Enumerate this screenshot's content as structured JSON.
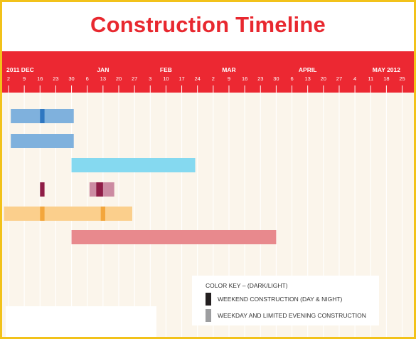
{
  "title": "Construction Timeline",
  "colors": {
    "header": "#ec2832",
    "chart_bg": "#fbf5eb",
    "grid": "#ffffff",
    "text_on_header": "#ffffff"
  },
  "chart_data": {
    "type": "gantt",
    "months": [
      {
        "label": "2011  DEC",
        "date": "2011-12-02"
      },
      {
        "label": "JAN",
        "date": "2012-01-13"
      },
      {
        "label": "FEB",
        "date": "2012-02-10"
      },
      {
        "label": "MAR",
        "date": "2012-03-09"
      },
      {
        "label": "APRIL",
        "date": "2012-04-13"
      },
      {
        "label": "MAY 2012",
        "date": "2012-05-18"
      }
    ],
    "ticks": [
      {
        "label": "2",
        "date": "2011-12-02"
      },
      {
        "label": "9",
        "date": "2011-12-09"
      },
      {
        "label": "16",
        "date": "2011-12-16"
      },
      {
        "label": "23",
        "date": "2011-12-23"
      },
      {
        "label": "30",
        "date": "2011-12-30"
      },
      {
        "label": "6",
        "date": "2012-01-06"
      },
      {
        "label": "13",
        "date": "2012-01-13"
      },
      {
        "label": "20",
        "date": "2012-01-20"
      },
      {
        "label": "27",
        "date": "2012-01-27"
      },
      {
        "label": "3",
        "date": "2012-02-03"
      },
      {
        "label": "10",
        "date": "2012-02-10"
      },
      {
        "label": "17",
        "date": "2012-02-17"
      },
      {
        "label": "24",
        "date": "2012-02-24"
      },
      {
        "label": "2",
        "date": "2012-03-02"
      },
      {
        "label": "9",
        "date": "2012-03-09"
      },
      {
        "label": "16",
        "date": "2012-03-16"
      },
      {
        "label": "23",
        "date": "2012-03-23"
      },
      {
        "label": "30",
        "date": "2012-03-30"
      },
      {
        "label": "6",
        "date": "2012-04-06"
      },
      {
        "label": "13",
        "date": "2012-04-13"
      },
      {
        "label": "20",
        "date": "2012-04-20"
      },
      {
        "label": "27",
        "date": "2012-04-27"
      },
      {
        "label": "4",
        "date": "2012-05-04"
      },
      {
        "label": "11",
        "date": "2012-05-11"
      },
      {
        "label": "18",
        "date": "2012-05-18"
      },
      {
        "label": "25",
        "date": "2012-05-25"
      }
    ],
    "rows": [
      {
        "light": [
          {
            "start": "2011-12-03",
            "end": "2011-12-31",
            "color": "#7fb1dd"
          }
        ],
        "dark": [
          {
            "start": "2011-12-16",
            "end": "2011-12-18",
            "color": "#2f77c1"
          }
        ]
      },
      {
        "light": [
          {
            "start": "2011-12-03",
            "end": "2011-12-31",
            "color": "#7fb1dd"
          }
        ],
        "dark": []
      },
      {
        "light": [
          {
            "start": "2011-12-30",
            "end": "2012-02-23",
            "color": "#85d9f0"
          }
        ],
        "dark": []
      },
      {
        "light": [
          {
            "start": "2012-01-07",
            "end": "2012-01-18",
            "color": "#cc8ba2"
          }
        ],
        "dark": [
          {
            "start": "2011-12-16",
            "end": "2011-12-18",
            "color": "#8f1d46"
          },
          {
            "start": "2012-01-10",
            "end": "2012-01-13",
            "color": "#8f1d46"
          }
        ]
      },
      {
        "light": [
          {
            "start": "2011-11-30",
            "end": "2012-01-26",
            "color": "#fbcf8c"
          }
        ],
        "dark": [
          {
            "start": "2011-12-16",
            "end": "2011-12-18",
            "color": "#f3a63c"
          },
          {
            "start": "2012-01-12",
            "end": "2012-01-14",
            "color": "#f3a63c"
          }
        ]
      },
      {
        "light": [
          {
            "start": "2011-12-30",
            "end": "2012-03-30",
            "color": "#e8898d"
          }
        ],
        "dark": []
      }
    ]
  },
  "color_key": {
    "title": "COLOR KEY – (DARK/LIGHT)",
    "items": [
      {
        "label": "WEEKEND CONSTRUCTION (DAY & NIGHT)",
        "color": "#231f20"
      },
      {
        "label": "WEEKDAY AND LIMITED EVENING CONSTRUCTION",
        "color": "#9d9ea0"
      }
    ]
  }
}
